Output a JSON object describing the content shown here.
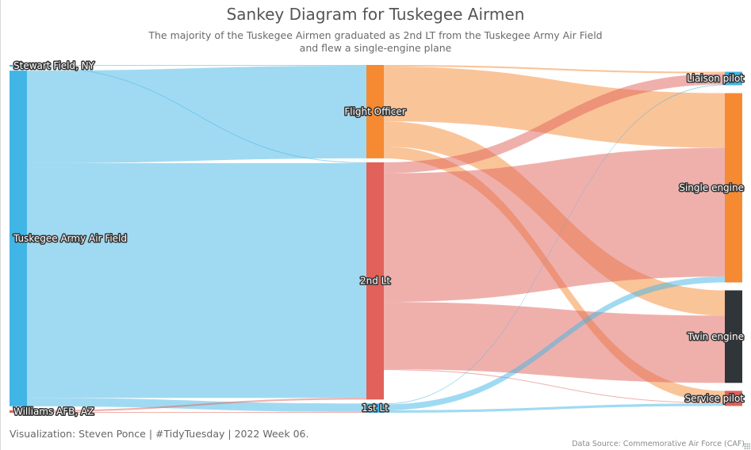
{
  "title": "Sankey Diagram for Tuskegee Airmen",
  "subtitle": {
    "line1": "The majority of the Tuskegee Airmen graduated as 2nd LT from the Tuskegee Army Air Field",
    "line2": "and flew a single-engine plane"
  },
  "caption": "Visualization: Steven Ponce | #TidyTuesday | 2022 Week 06.",
  "source": "Data Source: Commemorative Air Force (CAF)",
  "colors": {
    "blue": "#41b6e6",
    "orange": "#f58a33",
    "red": "#e0625a",
    "charcoal": "#2f3538"
  },
  "chart_data": {
    "type": "sankey",
    "title": "Sankey Diagram for Tuskegee Airmen",
    "subtitle": "The majority of the Tuskegee Airmen graduated as 2nd LT from the Tuskegee Army Air Field and flew a single-engine plane",
    "nodes": [
      {
        "id": "stewart",
        "label": "Stewart Field, NY",
        "column": 0,
        "color": "#41b6e6"
      },
      {
        "id": "tuskegee",
        "label": "Tuskegee Army Air Field",
        "column": 0,
        "color": "#41b6e6"
      },
      {
        "id": "williams",
        "label": "Williams AFB, AZ",
        "column": 0,
        "color": "#e0625a"
      },
      {
        "id": "fo",
        "label": "Flight Officer",
        "column": 1,
        "color": "#f58a33"
      },
      {
        "id": "2lt",
        "label": "2nd Lt",
        "column": 1,
        "color": "#e0625a"
      },
      {
        "id": "1lt",
        "label": "1st Lt",
        "column": 1,
        "color": "#41b6e6"
      },
      {
        "id": "liaison",
        "label": "Liaison pilot",
        "column": 2,
        "color": "#41b6e6"
      },
      {
        "id": "single",
        "label": "Single engine",
        "column": 2,
        "color": "#f58a33"
      },
      {
        "id": "twin",
        "label": "Twin engine",
        "column": 2,
        "color": "#2f3538"
      },
      {
        "id": "service",
        "label": "Service pilot",
        "column": 2,
        "color": "#e0625a"
      }
    ],
    "links": [
      {
        "source": "stewart",
        "target": "fo",
        "value": 1
      },
      {
        "source": "stewart",
        "target": "2lt",
        "value": 1
      },
      {
        "source": "tuskegee",
        "target": "fo",
        "value": 110
      },
      {
        "source": "tuskegee",
        "target": "2lt",
        "value": 279
      },
      {
        "source": "tuskegee",
        "target": "1lt",
        "value": 10
      },
      {
        "source": "williams",
        "target": "2lt",
        "value": 2
      },
      {
        "source": "williams",
        "target": "1lt",
        "value": 1
      },
      {
        "source": "fo",
        "target": "liaison",
        "value": 2
      },
      {
        "source": "fo",
        "target": "single",
        "value": 65
      },
      {
        "source": "fo",
        "target": "twin",
        "value": 30
      },
      {
        "source": "fo",
        "target": "service",
        "value": 14
      },
      {
        "source": "2lt",
        "target": "liaison",
        "value": 13
      },
      {
        "source": "2lt",
        "target": "single",
        "value": 153
      },
      {
        "source": "2lt",
        "target": "twin",
        "value": 80
      },
      {
        "source": "2lt",
        "target": "service",
        "value": 1
      },
      {
        "source": "1lt",
        "target": "liaison",
        "value": 1
      },
      {
        "source": "1lt",
        "target": "single",
        "value": 7
      },
      {
        "source": "1lt",
        "target": "service",
        "value": 3
      }
    ]
  }
}
